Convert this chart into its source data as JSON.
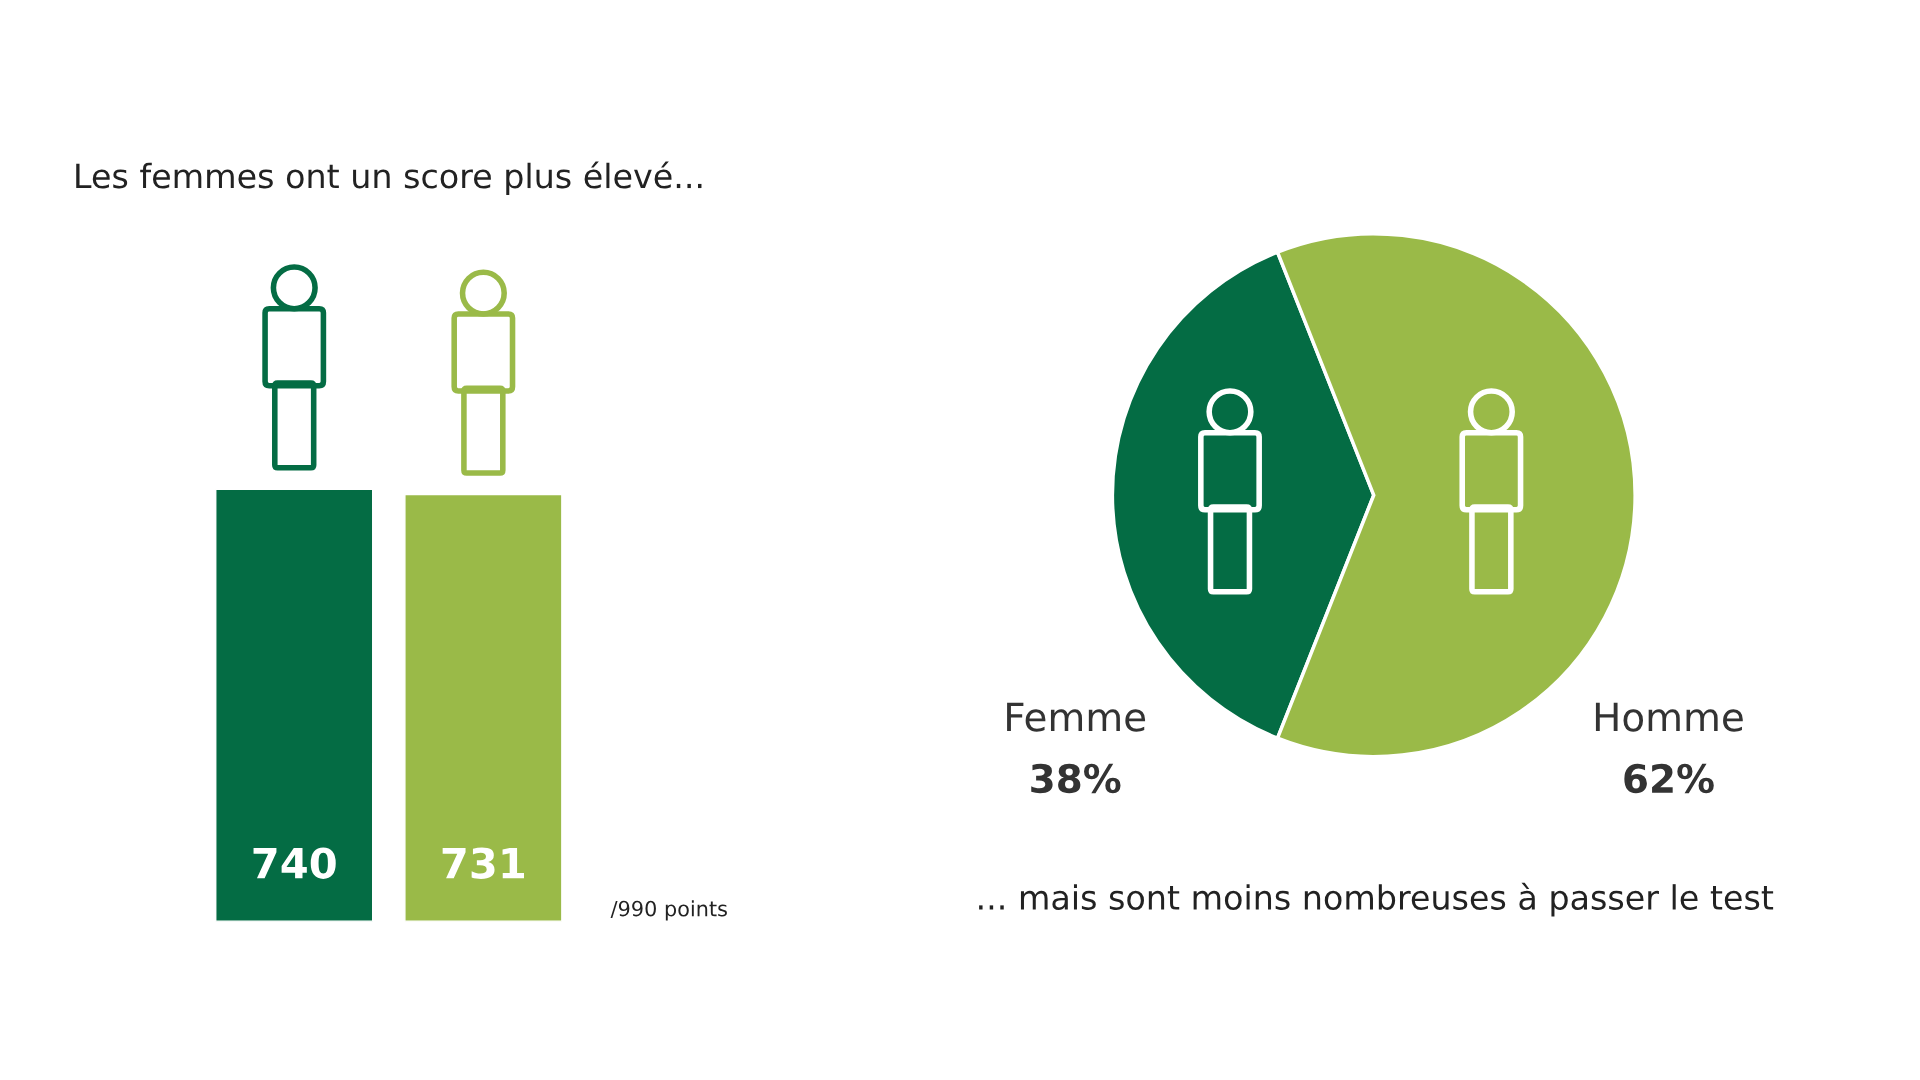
{
  "chart_data": [
    {
      "type": "bar",
      "title": "Les femmes ont un score plus élevé...",
      "categories": [
        null,
        null
      ],
      "values": [
        740,
        731
      ],
      "colors": [
        "#046c44",
        "#9aba48"
      ],
      "tick_labels": false,
      "data_labels": true,
      "annotations": [
        "/990 points"
      ]
    },
    {
      "type": "pie",
      "categories": [
        "Femme",
        "Homme"
      ],
      "values": [
        38,
        62
      ],
      "value_labels": [
        "38%",
        "62%"
      ],
      "colors": [
        "#046c44",
        "#9aba48"
      ],
      "annotations": [
        "... mais sont moins nombreuses à passer le test"
      ]
    }
  ]
}
